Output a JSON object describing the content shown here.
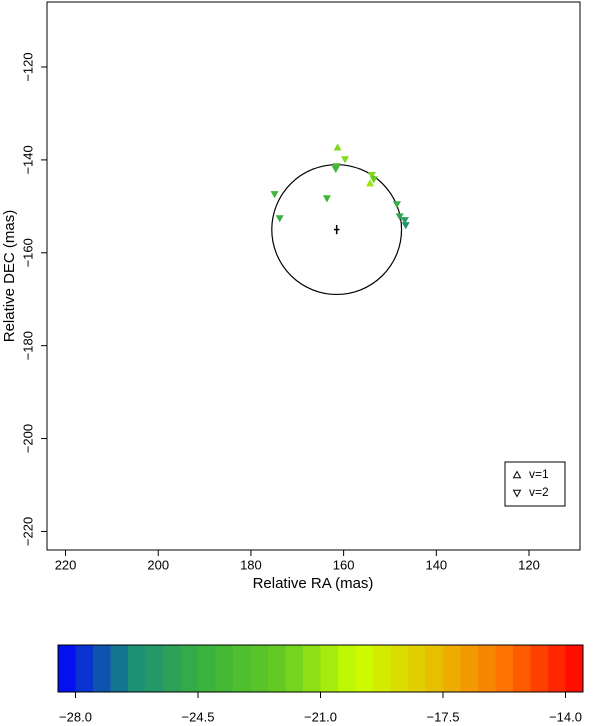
{
  "chart_data": {
    "type": "scatter",
    "x_label": "Relative RA (mas)",
    "y_label": "Relative DEC (mas)",
    "xlim": [
      224,
      109
    ],
    "ylim": [
      -224,
      -106
    ],
    "xticks": [
      220,
      200,
      180,
      160,
      140,
      120
    ],
    "yticks": [
      {
        "value": -120,
        "label": "−120"
      },
      {
        "value": -140,
        "label": "−140"
      },
      {
        "value": -160,
        "label": "−160"
      },
      {
        "value": -180,
        "label": "−180"
      },
      {
        "value": -200,
        "label": "−200"
      },
      {
        "value": -220,
        "label": "−220"
      }
    ],
    "series": [
      {
        "name": "v=1",
        "marker": "triangle-up",
        "x": [
          161.3,
          154.3
        ],
        "y": [
          -137.3,
          -145
        ],
        "velocity": [
          -21.5,
          -21
        ]
      },
      {
        "name": "v=2",
        "marker": "triangle-down",
        "x": [
          159.7,
          161.5,
          161.7,
          174.9,
          173.8,
          163.6,
          153.9,
          153.5,
          148.5,
          147.9,
          146.8,
          146.6
        ],
        "y": [
          -139.9,
          -141.4,
          -142,
          -147.4,
          -152.6,
          -148.3,
          -143.3,
          -144.2,
          -149.6,
          -152.2,
          -153,
          -154.1
        ],
        "velocity": [
          -21.5,
          -23.5,
          -24,
          -24,
          -24.5,
          -24,
          -21.5,
          -22,
          -24.5,
          -25,
          -25.5,
          -26
        ]
      }
    ],
    "circle": {
      "x": 161.5,
      "y": -155,
      "r": 14
    },
    "center": {
      "x": 161.5,
      "y": -155,
      "xerr": 0.6,
      "yerr": 1
    },
    "legend": "bottom-right",
    "colorbar": {
      "lim": [
        -28.5,
        -13.5
      ],
      "cells": 30,
      "colormap": [
        "#0000ff",
        "#1a8f78",
        "#3cb43c",
        "#66cc22",
        "#ccff00",
        "#e6c000",
        "#ff7000",
        "#ff0000"
      ],
      "ticks": [
        {
          "value": -28,
          "label": "−28.0"
        },
        {
          "value": -24.5,
          "label": "−24.5"
        },
        {
          "value": -21,
          "label": "−21.0"
        },
        {
          "value": -17.5,
          "label": "−17.5"
        },
        {
          "value": -14,
          "label": "−14.0"
        }
      ]
    }
  }
}
